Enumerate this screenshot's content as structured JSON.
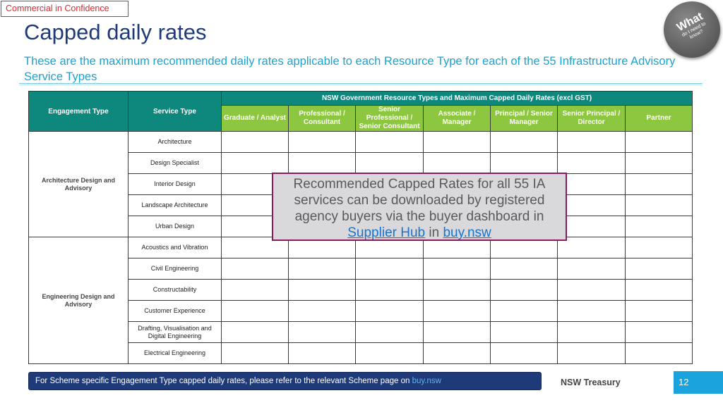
{
  "header": {
    "confidential": "Commercial in Confidence",
    "title": "Capped daily rates",
    "subtitle": "These are the maximum recommended daily rates applicable to each Resource Type for each of the 55 Infrastructure Advisory Service Types"
  },
  "badge": {
    "line1": "What",
    "line2": "do I need to",
    "line3": "know?"
  },
  "table": {
    "col_engagement": "Engagement Type",
    "col_service": "Service Type",
    "group_header": "NSW Government Resource Types and Maximum Capped Daily Rates (excl GST)",
    "resource_types": [
      "Graduate / Analyst",
      "Professional / Consultant",
      "Senior Professional / Senior Consultant",
      "Associate / Manager",
      "Principal / Senior Manager",
      "Senior Principal / Director",
      "Partner"
    ],
    "groups": [
      {
        "engagement": "Architecture Design and Advisory",
        "services": [
          "Architecture",
          "Design Specialist",
          "Interior Design",
          "Landscape Architecture",
          "Urban Design"
        ]
      },
      {
        "engagement": "Engineering Design and Advisory",
        "services": [
          "Acoustics and Vibration",
          "Civil Engineering",
          "Constructability",
          "Customer Experience",
          "Drafting, Visualisation and Digital Engineering",
          "Electrical Engineering"
        ]
      }
    ]
  },
  "callout": {
    "text": "Recommended Capped Rates for all 55 IA services can be downloaded by registered agency buyers via the buyer dashboard in",
    "link1": "Supplier Hub",
    "joiner": " in ",
    "link2": "buy.nsw"
  },
  "footer": {
    "note": "For Scheme specific Engagement Type capped daily rates, please refer to the relevant Scheme page on ",
    "note_link": "buy.nsw",
    "org": "NSW Treasury",
    "page": "12"
  },
  "colors": {
    "title": "#1f3a78",
    "subtitle": "#1ba3cf",
    "teal_header": "#0e877c",
    "green_header": "#8dc63f",
    "callout_border": "#8b1a63",
    "footer_bar": "#1f3a78",
    "page_box": "#1ba3dd"
  }
}
